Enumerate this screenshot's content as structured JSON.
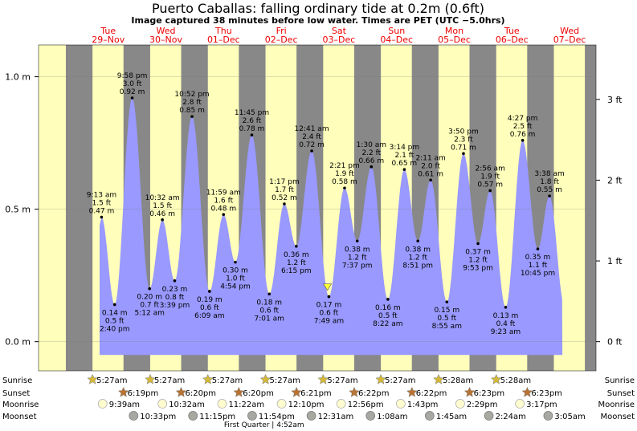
{
  "chart_data": {
    "type": "area",
    "title": "Puerto Caballas: falling  ordinary tide at 0.2m (0.6ft)",
    "subtitle": "Image captured 38 minutes before low water. Times are PET (UTC −5.0hrs)",
    "left_axis": {
      "unit": "m",
      "ylim": [
        -0.11,
        1.12
      ],
      "ticks": [
        0.0,
        0.5,
        1.0
      ],
      "tick_labels": [
        "0.0 m",
        "0.5 m",
        "1.0 m"
      ]
    },
    "right_axis": {
      "unit": "ft",
      "ticks": [
        0,
        1,
        2,
        3
      ],
      "tick_labels": [
        "0 ft",
        "1 ft",
        "2 ft",
        "3 ft"
      ]
    },
    "x_range_hours": [
      -17.0,
      215.0
    ],
    "x_note": "hours from 29-Nov 00:00 PET",
    "days": [
      {
        "name": "Tue",
        "date": "29–Nov"
      },
      {
        "name": "Wed",
        "date": "30–Nov"
      },
      {
        "name": "Thu",
        "date": "01–Dec"
      },
      {
        "name": "Fri",
        "date": "02–Dec"
      },
      {
        "name": "Sat",
        "date": "03–Dec"
      },
      {
        "name": "Sun",
        "date": "04–Dec"
      },
      {
        "name": "Mon",
        "date": "05–Dec"
      },
      {
        "name": "Tue",
        "date": "06–Dec"
      },
      {
        "name": "Wed",
        "date": "07–Dec"
      }
    ],
    "daylight_hours": {
      "start": 5.45,
      "end": 18.35
    },
    "tides": [
      {
        "type": "high",
        "t": 9.22,
        "time": "9:13 am",
        "ft": "1.5 ft",
        "m": 0.47,
        "m_label": "0.47 m"
      },
      {
        "type": "low",
        "t": 14.67,
        "time": "2:40 pm",
        "ft": "0.5 ft",
        "m": 0.14,
        "m_label": "0.14 m"
      },
      {
        "type": "high",
        "t": 21.97,
        "time": "9:58 pm",
        "ft": "3.0 ft",
        "m": 0.92,
        "m_label": "0.92 m"
      },
      {
        "type": "low",
        "t": 29.2,
        "time": "5:12 am",
        "ft": "0.7 ft",
        "m": 0.2,
        "m_label": "0.20 m"
      },
      {
        "type": "high",
        "t": 34.53,
        "time": "10:32 am",
        "ft": "1.5 ft",
        "m": 0.46,
        "m_label": "0.46 m"
      },
      {
        "type": "low",
        "t": 39.65,
        "time": "3:39 pm",
        "ft": "0.8 ft",
        "m": 0.23,
        "m_label": "0.23 m"
      },
      {
        "type": "high",
        "t": 46.87,
        "time": "10:52 pm",
        "ft": "2.8 ft",
        "m": 0.85,
        "m_label": "0.85 m"
      },
      {
        "type": "low",
        "t": 54.15,
        "time": "6:09 am",
        "ft": "0.6 ft",
        "m": 0.19,
        "m_label": "0.19 m"
      },
      {
        "type": "high",
        "t": 59.98,
        "time": "11:59 am",
        "ft": "1.6 ft",
        "m": 0.48,
        "m_label": "0.48 m"
      },
      {
        "type": "low",
        "t": 64.9,
        "time": "4:54 pm",
        "ft": "1.0 ft",
        "m": 0.3,
        "m_label": "0.30 m"
      },
      {
        "type": "high",
        "t": 71.75,
        "time": "11:45 pm",
        "ft": "2.6 ft",
        "m": 0.78,
        "m_label": "0.78 m"
      },
      {
        "type": "low",
        "t": 79.02,
        "time": "7:01 am",
        "ft": "0.6 ft",
        "m": 0.18,
        "m_label": "0.18 m"
      },
      {
        "type": "high",
        "t": 85.28,
        "time": "1:17 pm",
        "ft": "1.7 ft",
        "m": 0.52,
        "m_label": "0.52 m"
      },
      {
        "type": "low",
        "t": 90.25,
        "time": "6:15 pm",
        "ft": "1.2 ft",
        "m": 0.36,
        "m_label": "0.36 m"
      },
      {
        "type": "high",
        "t": 96.68,
        "time": "12:41 am",
        "ft": "2.4 ft",
        "m": 0.72,
        "m_label": "0.72 m"
      },
      {
        "type": "low",
        "t": 103.82,
        "time": "7:49 am",
        "ft": "0.6 ft",
        "m": 0.17,
        "m_label": "0.17 m"
      },
      {
        "type": "high",
        "t": 110.35,
        "time": "2:21 pm",
        "ft": "1.9 ft",
        "m": 0.58,
        "m_label": "0.58 m"
      },
      {
        "type": "low",
        "t": 115.62,
        "time": "7:37 pm",
        "ft": "1.2 ft",
        "m": 0.38,
        "m_label": "0.38 m"
      },
      {
        "type": "high",
        "t": 121.5,
        "time": "1:30 am",
        "ft": "2.2 ft",
        "m": 0.66,
        "m_label": "0.66 m"
      },
      {
        "type": "low",
        "t": 128.37,
        "time": "8:22 am",
        "ft": "0.5 ft",
        "m": 0.16,
        "m_label": "0.16 m"
      },
      {
        "type": "high",
        "t": 135.23,
        "time": "3:14 pm",
        "ft": "2.1 ft",
        "m": 0.65,
        "m_label": "0.65 m"
      },
      {
        "type": "low",
        "t": 140.85,
        "time": "8:51 pm",
        "ft": "1.2 ft",
        "m": 0.38,
        "m_label": "0.38 m"
      },
      {
        "type": "high",
        "t": 146.18,
        "time": "2:11 am",
        "ft": "2.0 ft",
        "m": 0.61,
        "m_label": "0.61 m"
      },
      {
        "type": "low",
        "t": 152.92,
        "time": "8:55 am",
        "ft": "0.5 ft",
        "m": 0.15,
        "m_label": "0.15 m"
      },
      {
        "type": "high",
        "t": 159.83,
        "time": "3:50 pm",
        "ft": "2.3 ft",
        "m": 0.71,
        "m_label": "0.71 m"
      },
      {
        "type": "low",
        "t": 165.88,
        "time": "9:53 pm",
        "ft": "1.2 ft",
        "m": 0.37,
        "m_label": "0.37 m"
      },
      {
        "type": "high",
        "t": 170.93,
        "time": "2:56 am",
        "ft": "1.9 ft",
        "m": 0.57,
        "m_label": "0.57 m"
      },
      {
        "type": "low",
        "t": 177.38,
        "time": "9:23 am",
        "ft": "0.4 ft",
        "m": 0.13,
        "m_label": "0.13 m"
      },
      {
        "type": "high",
        "t": 184.45,
        "time": "4:27 pm",
        "ft": "2.5 ft",
        "m": 0.76,
        "m_label": "0.76 m"
      },
      {
        "type": "low",
        "t": 190.75,
        "time": "10:45 pm",
        "ft": "1.1 ft",
        "m": 0.35,
        "m_label": "0.35 m"
      },
      {
        "type": "high",
        "t": 195.63,
        "time": "3:38 am",
        "ft": "1.8 ft",
        "m": 0.55,
        "m_label": "0.55 m"
      }
    ],
    "data_end_hour": 201.0,
    "current_marker": {
      "t": 103.2,
      "m": 0.2
    },
    "astro": {
      "row_labels": [
        "Sunrise",
        "Sunset",
        "Moonrise",
        "Moonset"
      ],
      "sunrise": [
        {
          "t": 5.45,
          "time": "5:27am"
        },
        {
          "t": 29.45,
          "time": "5:27am"
        },
        {
          "t": 53.45,
          "time": "5:27am"
        },
        {
          "t": 77.45,
          "time": "5:27am"
        },
        {
          "t": 101.45,
          "time": "5:27am"
        },
        {
          "t": 125.45,
          "time": "5:27am"
        },
        {
          "t": 149.47,
          "time": "5:28am"
        },
        {
          "t": 173.47,
          "time": "5:28am"
        }
      ],
      "sunset": [
        {
          "t": 18.32,
          "time": "6:19pm"
        },
        {
          "t": 42.33,
          "time": "6:20pm"
        },
        {
          "t": 66.33,
          "time": "6:20pm"
        },
        {
          "t": 90.35,
          "time": "6:21pm"
        },
        {
          "t": 114.37,
          "time": "6:22pm"
        },
        {
          "t": 138.37,
          "time": "6:22pm"
        },
        {
          "t": 162.38,
          "time": "6:23pm"
        },
        {
          "t": 186.38,
          "time": "6:23pm"
        }
      ],
      "moonrise": [
        {
          "t": 9.65,
          "time": "9:39am"
        },
        {
          "t": 34.53,
          "time": "10:32am"
        },
        {
          "t": 59.37,
          "time": "11:22am"
        },
        {
          "t": 84.17,
          "time": "12:10pm"
        },
        {
          "t": 108.93,
          "time": "12:56pm"
        },
        {
          "t": 133.72,
          "time": "1:43pm"
        },
        {
          "t": 158.48,
          "time": "2:29pm"
        },
        {
          "t": 183.28,
          "time": "3:17pm"
        }
      ],
      "moonset": [
        {
          "t": 22.55,
          "time": "10:33pm"
        },
        {
          "t": 47.25,
          "time": "11:15pm"
        },
        {
          "t": 71.9,
          "time": "11:54pm"
        },
        {
          "t": 96.52,
          "time": "12:31am"
        },
        {
          "t": 121.13,
          "time": "1:08am"
        },
        {
          "t": 145.75,
          "time": "1:45am"
        },
        {
          "t": 170.4,
          "time": "2:24am"
        },
        {
          "t": 195.08,
          "time": "3:05am"
        }
      ],
      "moon_phase": {
        "t": 76.87,
        "text": "First Quarter | 4:52am"
      }
    },
    "colors": {
      "night": "#888888",
      "day": "#ffffbb",
      "water": "#9999ff",
      "day_text": "#ee0000",
      "sun_star": "#d4b83a",
      "sunset_star": "#b87333",
      "moonrise": "#fffcd0",
      "moonset": "#a7a8a1",
      "marker": "#ffff33"
    }
  }
}
